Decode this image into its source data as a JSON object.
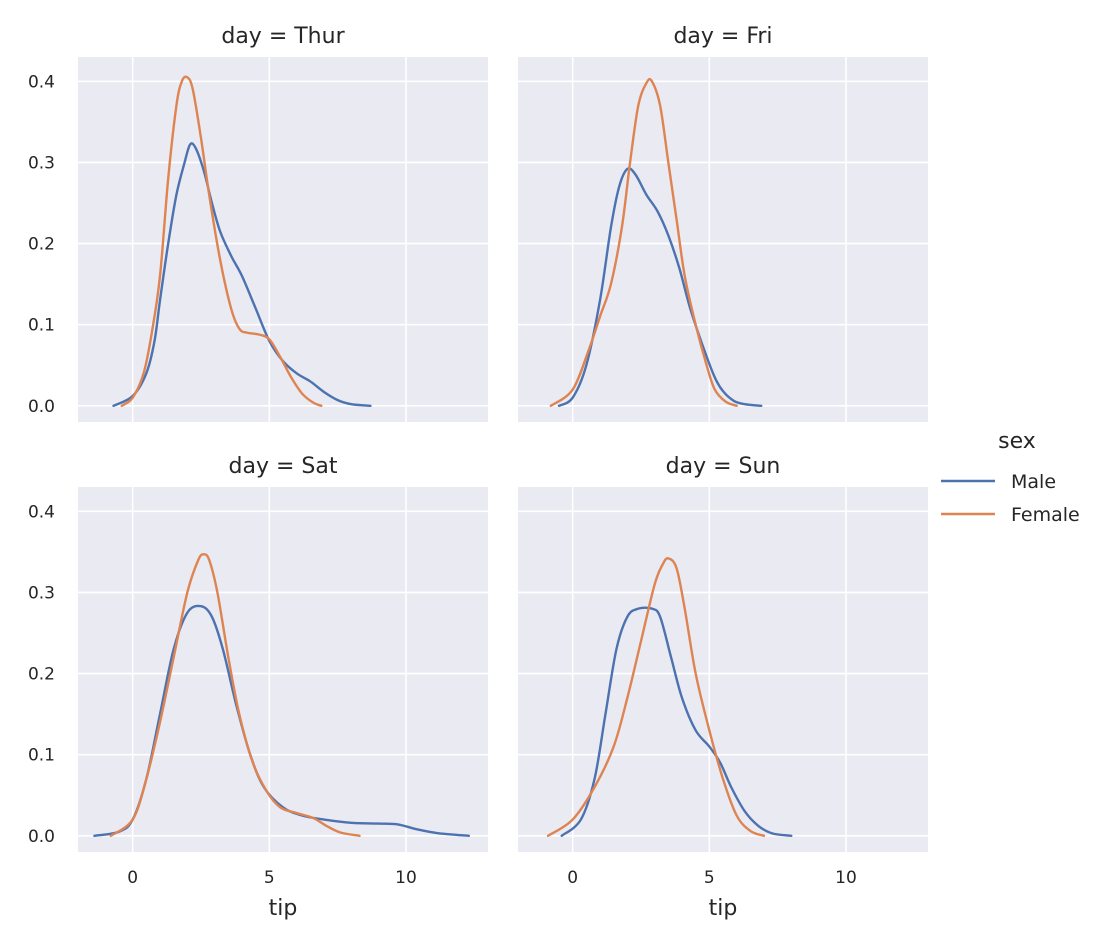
{
  "chart_data": {
    "type": "line",
    "kind": "kde facet grid",
    "xlabel": "tip",
    "ylabel": "",
    "xlim": [
      -2,
      13
    ],
    "ylim": [
      -0.02,
      0.43
    ],
    "xticks": [
      0,
      5,
      10
    ],
    "yticks": [
      0.0,
      0.1,
      0.2,
      0.3,
      0.4
    ],
    "grid": true,
    "legend": {
      "title": "sex",
      "placement": "right",
      "entries": [
        {
          "name": "Male",
          "color": "#4c72b0"
        },
        {
          "name": "Female",
          "color": "#dd8452"
        }
      ]
    },
    "panels": [
      {
        "title": "day = Thur",
        "series": [
          {
            "name": "Male",
            "color": "#4c72b0",
            "x": [
              -0.7,
              0.0,
              0.5,
              0.8,
              1.0,
              1.3,
              1.6,
              1.9,
              2.1,
              2.3,
              2.6,
              2.9,
              3.2,
              3.6,
              4.0,
              4.5,
              5.0,
              5.5,
              6.0,
              6.5,
              7.0,
              7.5,
              8.0,
              8.7
            ],
            "y": [
              0.0,
              0.012,
              0.04,
              0.08,
              0.13,
              0.2,
              0.26,
              0.3,
              0.322,
              0.318,
              0.29,
              0.25,
              0.215,
              0.185,
              0.16,
              0.12,
              0.08,
              0.055,
              0.04,
              0.03,
              0.017,
              0.007,
              0.002,
              0.0
            ]
          },
          {
            "name": "Female",
            "color": "#dd8452",
            "x": [
              -0.4,
              0.0,
              0.4,
              0.7,
              1.0,
              1.3,
              1.6,
              1.8,
              2.0,
              2.2,
              2.5,
              2.8,
              3.2,
              3.6,
              3.9,
              4.2,
              4.6,
              5.0,
              5.4,
              5.8,
              6.2,
              6.6,
              6.9
            ],
            "y": [
              0.0,
              0.01,
              0.04,
              0.09,
              0.16,
              0.28,
              0.37,
              0.4,
              0.405,
              0.39,
              0.33,
              0.26,
              0.18,
              0.12,
              0.095,
              0.09,
              0.088,
              0.082,
              0.06,
              0.035,
              0.015,
              0.004,
              0.0
            ]
          }
        ]
      },
      {
        "title": "day = Fri",
        "series": [
          {
            "name": "Male",
            "color": "#4c72b0",
            "x": [
              -0.5,
              0.0,
              0.5,
              1.0,
              1.4,
              1.7,
              2.0,
              2.3,
              2.7,
              3.1,
              3.5,
              3.9,
              4.3,
              4.8,
              5.2,
              5.5,
              5.9,
              6.3,
              6.9
            ],
            "y": [
              0.0,
              0.01,
              0.05,
              0.13,
              0.22,
              0.27,
              0.292,
              0.285,
              0.26,
              0.24,
              0.21,
              0.17,
              0.12,
              0.07,
              0.035,
              0.018,
              0.006,
              0.002,
              0.0
            ]
          },
          {
            "name": "Female",
            "color": "#dd8452",
            "x": [
              -0.8,
              0.0,
              0.6,
              1.0,
              1.4,
              1.8,
              2.1,
              2.4,
              2.7,
              2.9,
              3.2,
              3.5,
              3.8,
              4.1,
              4.5,
              4.9,
              5.2,
              5.6,
              6.0
            ],
            "y": [
              0.0,
              0.02,
              0.07,
              0.11,
              0.15,
              0.22,
              0.3,
              0.37,
              0.398,
              0.4,
              0.37,
              0.3,
              0.23,
              0.16,
              0.1,
              0.05,
              0.02,
              0.005,
              0.0
            ]
          }
        ]
      },
      {
        "title": "day = Sat",
        "series": [
          {
            "name": "Male",
            "color": "#4c72b0",
            "x": [
              -1.4,
              -0.5,
              0.0,
              0.5,
              1.0,
              1.5,
              2.0,
              2.5,
              2.9,
              3.3,
              3.8,
              4.3,
              4.8,
              5.5,
              6.2,
              7.0,
              8.0,
              9.0,
              9.7,
              10.4,
              11.2,
              12.3
            ],
            "y": [
              0.0,
              0.005,
              0.02,
              0.07,
              0.15,
              0.23,
              0.275,
              0.283,
              0.27,
              0.23,
              0.16,
              0.1,
              0.06,
              0.035,
              0.025,
              0.02,
              0.016,
              0.015,
              0.014,
              0.008,
              0.003,
              0.0
            ]
          },
          {
            "name": "Female",
            "color": "#dd8452",
            "x": [
              -0.8,
              0.0,
              0.5,
              1.0,
              1.5,
              2.0,
              2.4,
              2.6,
              2.8,
              3.1,
              3.5,
              3.9,
              4.4,
              4.9,
              5.4,
              6.0,
              6.6,
              7.1,
              7.6,
              8.3
            ],
            "y": [
              0.0,
              0.02,
              0.07,
              0.14,
              0.22,
              0.3,
              0.34,
              0.347,
              0.34,
              0.3,
              0.22,
              0.15,
              0.09,
              0.055,
              0.035,
              0.028,
              0.022,
              0.012,
              0.004,
              0.0
            ]
          }
        ]
      },
      {
        "title": "day = Sun",
        "series": [
          {
            "name": "Male",
            "color": "#4c72b0",
            "x": [
              -0.4,
              0.3,
              0.8,
              1.2,
              1.6,
              2.0,
              2.4,
              2.9,
              3.2,
              3.6,
              4.0,
              4.5,
              5.0,
              5.4,
              5.8,
              6.3,
              6.8,
              7.3,
              8.0
            ],
            "y": [
              0.0,
              0.02,
              0.07,
              0.15,
              0.23,
              0.27,
              0.28,
              0.28,
              0.27,
              0.22,
              0.17,
              0.13,
              0.11,
              0.09,
              0.06,
              0.03,
              0.012,
              0.003,
              0.0
            ]
          },
          {
            "name": "Female",
            "color": "#dd8452",
            "x": [
              -0.9,
              0.0,
              0.8,
              1.5,
              2.0,
              2.5,
              3.0,
              3.3,
              3.5,
              3.8,
              4.1,
              4.5,
              5.0,
              5.5,
              6.0,
              6.5,
              7.0
            ],
            "y": [
              0.0,
              0.02,
              0.06,
              0.11,
              0.17,
              0.24,
              0.31,
              0.335,
              0.342,
              0.33,
              0.28,
              0.2,
              0.13,
              0.07,
              0.025,
              0.006,
              0.0
            ]
          }
        ]
      }
    ]
  }
}
